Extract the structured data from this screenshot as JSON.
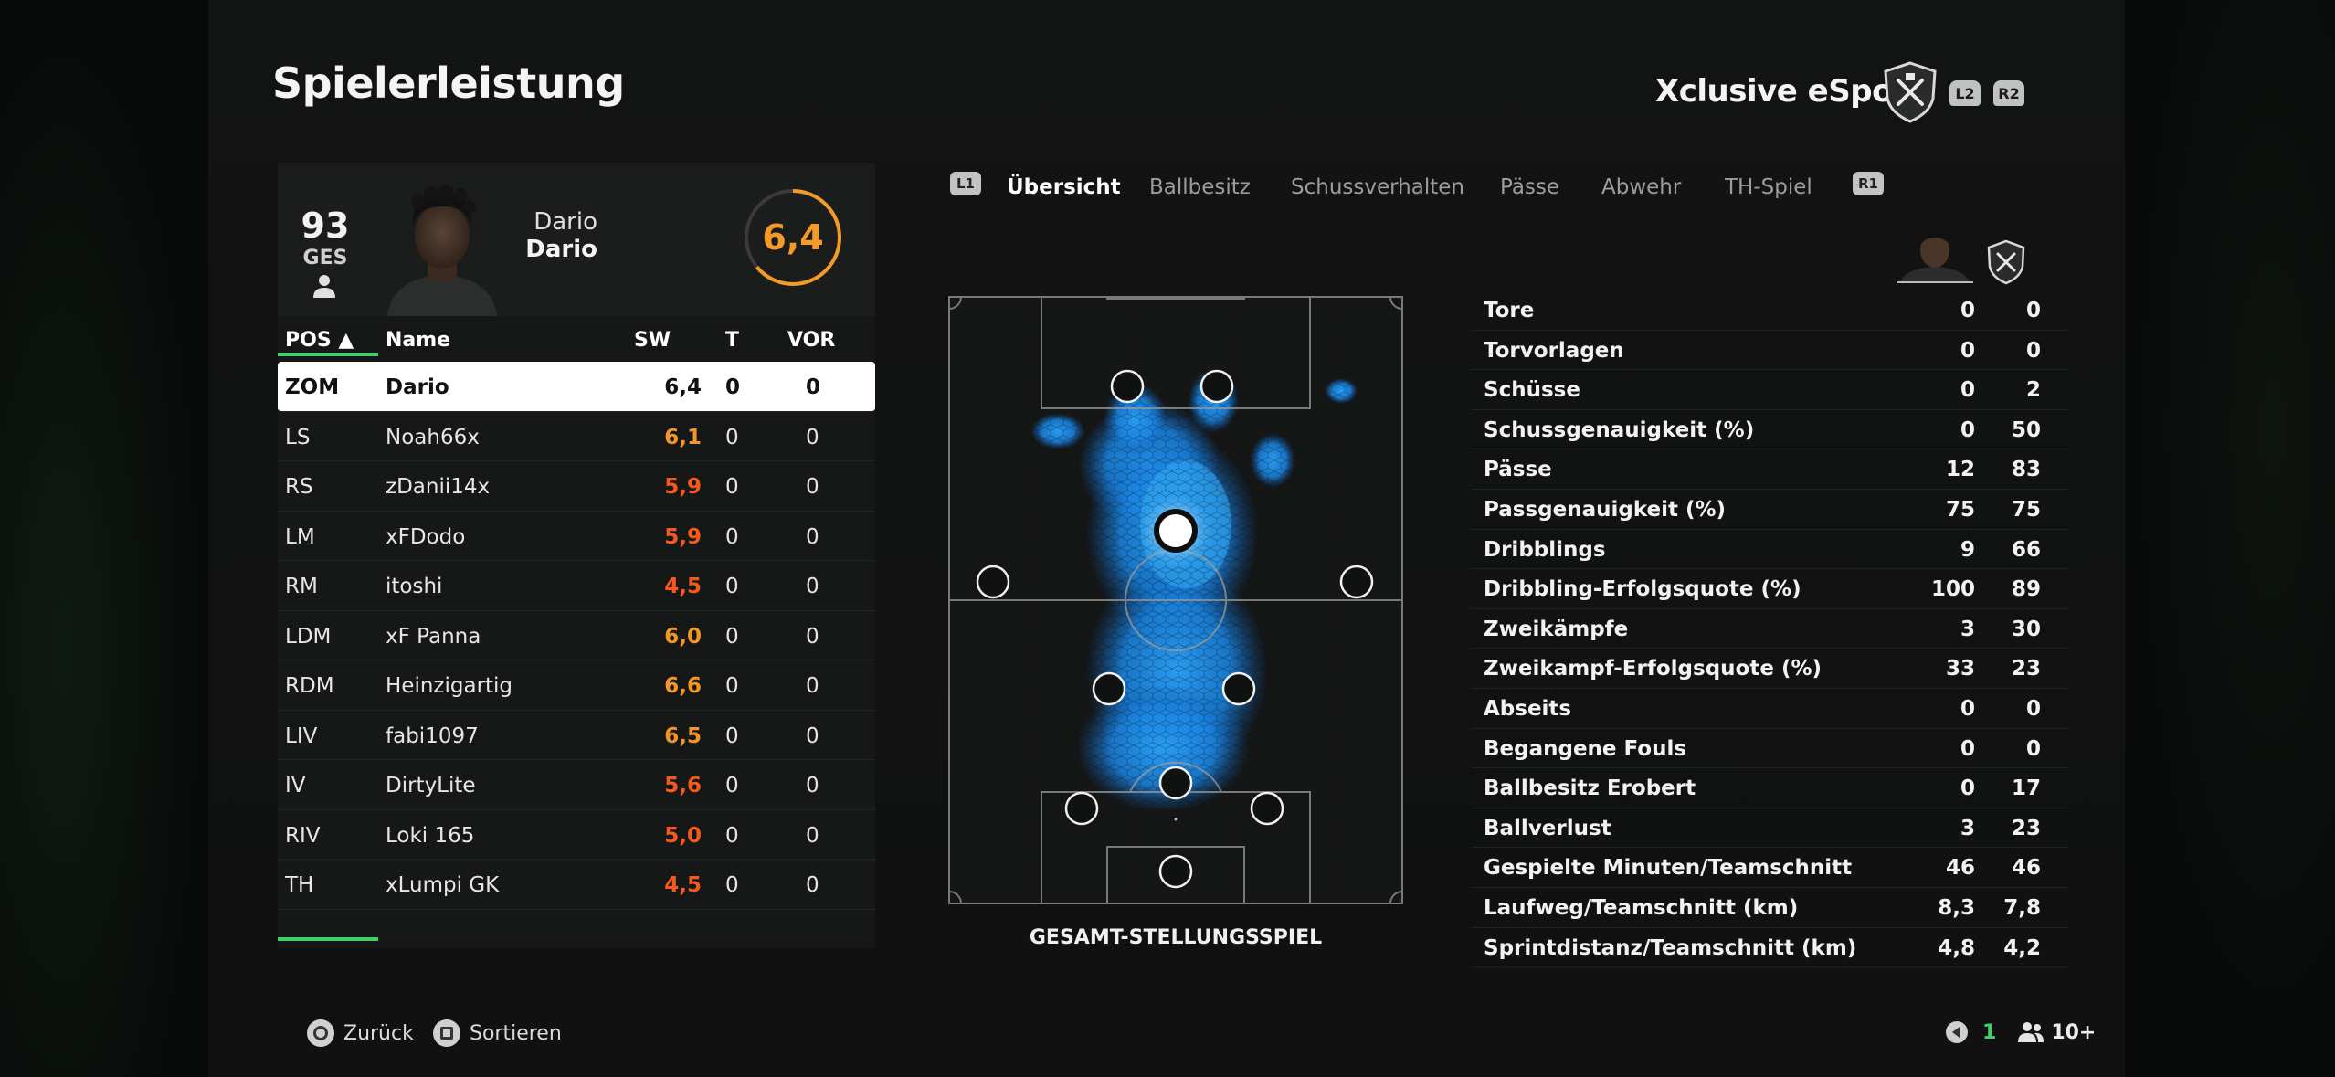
{
  "screen": {
    "title": "Spielerleistung",
    "club_name": "Xclusive eSport"
  },
  "buttons": {
    "l2": "L2",
    "r2": "R2",
    "l1": "L1",
    "r1": "R1"
  },
  "player": {
    "overall": "93",
    "overall_label": "GES",
    "first_name": "Dario",
    "last_name": "Dario",
    "rating": "6,4"
  },
  "table": {
    "headers": {
      "pos": "POS ▲",
      "name": "Name",
      "sw": "SW",
      "t": "T",
      "vor": "VOR"
    },
    "rows": [
      {
        "pos": "ZOM",
        "name": "Dario",
        "sw": "6,4",
        "t": "0",
        "vor": "0"
      },
      {
        "pos": "LS",
        "name": "Noah66x",
        "sw": "6,1",
        "t": "0",
        "vor": "0"
      },
      {
        "pos": "RS",
        "name": "zDanii14x",
        "sw": "5,9",
        "t": "0",
        "vor": "0"
      },
      {
        "pos": "LM",
        "name": "xFDodo",
        "sw": "5,9",
        "t": "0",
        "vor": "0"
      },
      {
        "pos": "RM",
        "name": "itoshi",
        "sw": "4,5",
        "t": "0",
        "vor": "0"
      },
      {
        "pos": "LDM",
        "name": "xF Panna",
        "sw": "6,0",
        "t": "0",
        "vor": "0"
      },
      {
        "pos": "RDM",
        "name": "Heinzigartig",
        "sw": "6,6",
        "t": "0",
        "vor": "0"
      },
      {
        "pos": "LIV",
        "name": "fabi1097",
        "sw": "6,5",
        "t": "0",
        "vor": "0"
      },
      {
        "pos": "IV",
        "name": "DirtyLite",
        "sw": "5,6",
        "t": "0",
        "vor": "0"
      },
      {
        "pos": "RIV",
        "name": "Loki 165",
        "sw": "5,0",
        "t": "0",
        "vor": "0"
      },
      {
        "pos": "TH",
        "name": "xLumpi GK",
        "sw": "4,5",
        "t": "0",
        "vor": "0"
      }
    ]
  },
  "tabs": [
    "Übersicht",
    "Ballbesitz",
    "Schussverhalten",
    "Pässe",
    "Abwehr",
    "TH-Spiel"
  ],
  "pitch": {
    "caption": "GESAMT-STELLUNGSSPIEL"
  },
  "stats": [
    {
      "label": "Tore",
      "player": "0",
      "team": "0"
    },
    {
      "label": "Torvorlagen",
      "player": "0",
      "team": "0"
    },
    {
      "label": "Schüsse",
      "player": "0",
      "team": "2"
    },
    {
      "label": "Schussgenauigkeit (%)",
      "player": "0",
      "team": "50"
    },
    {
      "label": "Pässe",
      "player": "12",
      "team": "83"
    },
    {
      "label": "Passgenauigkeit (%)",
      "player": "75",
      "team": "75"
    },
    {
      "label": "Dribblings",
      "player": "9",
      "team": "66"
    },
    {
      "label": "Dribbling-Erfolgsquote (%)",
      "player": "100",
      "team": "89"
    },
    {
      "label": "Zweikämpfe",
      "player": "3",
      "team": "30"
    },
    {
      "label": "Zweikampf-Erfolgsquote (%)",
      "player": "33",
      "team": "23"
    },
    {
      "label": "Abseits",
      "player": "0",
      "team": "0"
    },
    {
      "label": "Begangene Fouls",
      "player": "0",
      "team": "0"
    },
    {
      "label": "Ballbesitz Erobert",
      "player": "0",
      "team": "17"
    },
    {
      "label": "Ballverlust",
      "player": "3",
      "team": "23"
    },
    {
      "label": "Gespielte Minuten/Teamschnitt",
      "player": "46",
      "team": "46"
    },
    {
      "label": "Laufweg/Teamschnitt (km)",
      "player": "8,3",
      "team": "7,8"
    },
    {
      "label": "Sprintdistanz/Teamschnitt (km)",
      "player": "4,8",
      "team": "4,2"
    }
  ],
  "footer": {
    "back": "Zurück",
    "sort": "Sortieren",
    "net_count": "1",
    "players_count": "10+"
  },
  "colors": {
    "accent_green": "#3ed16b",
    "rating_orange": "#f39a2b",
    "low_rating_red": "#f5591e",
    "heatmap_blue": "#1e9bff"
  }
}
